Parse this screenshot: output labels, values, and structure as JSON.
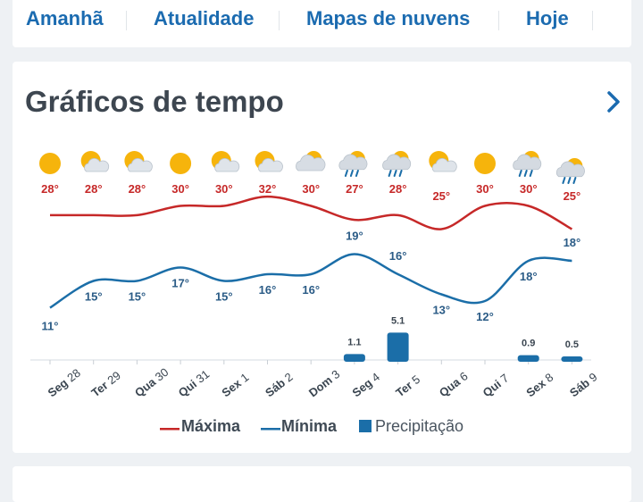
{
  "tabs": [
    "Amanhã",
    "Atualidade",
    "Mapas de nuvens",
    "Hoje"
  ],
  "section": {
    "title": "Gráficos de tempo"
  },
  "chart_data": {
    "type": "line",
    "categories": [
      {
        "day": "Seg",
        "date": "28"
      },
      {
        "day": "Ter",
        "date": "29"
      },
      {
        "day": "Qua",
        "date": "30"
      },
      {
        "day": "Qui",
        "date": "31"
      },
      {
        "day": "Sex",
        "date": "1"
      },
      {
        "day": "Sáb",
        "date": "2"
      },
      {
        "day": "Dom",
        "date": "3"
      },
      {
        "day": "Seg",
        "date": "4"
      },
      {
        "day": "Ter",
        "date": "5"
      },
      {
        "day": "Qua",
        "date": "6"
      },
      {
        "day": "Qui",
        "date": "7"
      },
      {
        "day": "Sex",
        "date": "8"
      },
      {
        "day": "Sáb",
        "date": "9"
      }
    ],
    "icons": [
      "sun-icon",
      "sun-cloud-icon",
      "sun-cloud-icon",
      "sun-icon",
      "sun-cloud-icon",
      "sun-cloud-icon",
      "cloud-sun-icon",
      "sun-cloud-rain-icon",
      "sun-cloud-rain-icon",
      "sun-cloud-icon",
      "sun-icon",
      "sun-cloud-rain-icon",
      "sun-cloud-rain-icon"
    ],
    "series": [
      {
        "name": "Máxima",
        "color": "#c62828",
        "values": [
          28,
          28,
          28,
          30,
          30,
          32,
          30,
          27,
          28,
          25,
          30,
          30,
          25
        ],
        "labels": [
          "28°",
          "28°",
          "28°",
          "30°",
          "30°",
          "32°",
          "30°",
          "27°",
          "28°",
          "25°",
          "30°",
          "30°",
          "25°"
        ]
      },
      {
        "name": "Mínima",
        "color": "#1b6ea8",
        "values": [
          11,
          15,
          15,
          17,
          15,
          16,
          16,
          19,
          16,
          13,
          12,
          18,
          18
        ],
        "labels": [
          "11°",
          "15°",
          "15°",
          "17°",
          "15°",
          "16°",
          "16°",
          "19°",
          "16°",
          "13°",
          "12°",
          "18°",
          "18°"
        ]
      },
      {
        "name": "Precipitação",
        "color": "#1b6ea8",
        "values": [
          0,
          0,
          0,
          0,
          0,
          0,
          0,
          1.1,
          5.1,
          0,
          0,
          0.9,
          0.5
        ],
        "labels": [
          "",
          "",
          "",
          "",
          "",
          "",
          "",
          "1.1",
          "5.1",
          "",
          "",
          "0.9",
          "0.5"
        ]
      }
    ]
  }
}
